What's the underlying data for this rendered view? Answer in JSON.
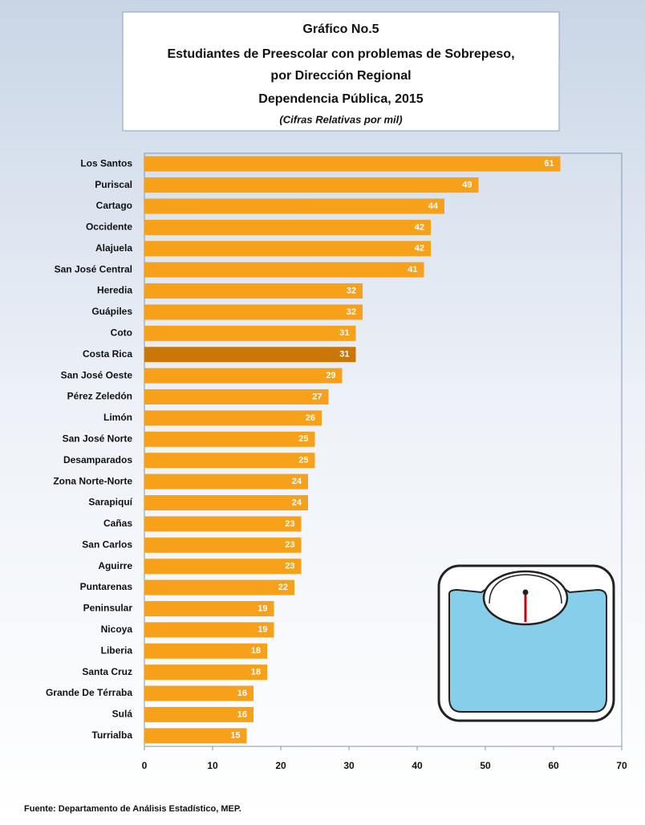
{
  "chart_data": {
    "type": "bar",
    "orientation": "horizontal",
    "title": [
      "Gráfico No.5",
      "Estudiantes de Preescolar con problemas de Sobrepeso,",
      "por Dirección Regional",
      "Dependencia Pública, 2015"
    ],
    "subtitle": "(Cifras Relativas por mil)",
    "categories": [
      "Los Santos",
      "Puriscal",
      "Cartago",
      "Occidente",
      "Alajuela",
      "San José Central",
      "Heredia",
      "Guápiles",
      "Coto",
      "Costa Rica",
      "San José Oeste",
      "Pérez Zeledón",
      "Limón",
      "San José Norte",
      "Desamparados",
      "Zona Norte-Norte",
      "Sarapiquí",
      "Cañas",
      "San Carlos",
      "Aguirre",
      "Puntarenas",
      "Peninsular",
      "Nicoya",
      "Liberia",
      "Santa Cruz",
      "Grande De Térraba",
      "Sulá",
      "Turrialba"
    ],
    "values": [
      61,
      49,
      44,
      42,
      42,
      41,
      32,
      32,
      31,
      31,
      29,
      27,
      26,
      25,
      25,
      24,
      24,
      23,
      23,
      23,
      22,
      19,
      19,
      18,
      18,
      16,
      16,
      15
    ],
    "colors": [
      "#f7a01a",
      "#f7a01a",
      "#f7a01a",
      "#f7a01a",
      "#f7a01a",
      "#f7a01a",
      "#f7a01a",
      "#f7a01a",
      "#f7a01a",
      "#c97706",
      "#f7a01a",
      "#f7a01a",
      "#f7a01a",
      "#f7a01a",
      "#f7a01a",
      "#f7a01a",
      "#f7a01a",
      "#f7a01a",
      "#f7a01a",
      "#f7a01a",
      "#f7a01a",
      "#f7a01a",
      "#f7a01a",
      "#f7a01a",
      "#f7a01a",
      "#f7a01a",
      "#f7a01a",
      "#f7a01a"
    ],
    "xlim": [
      0,
      70
    ],
    "xticks": [
      0,
      10,
      20,
      30,
      40,
      50,
      60,
      70
    ],
    "grid": false,
    "source": "Fuente: Departamento de Análisis Estadístico, MEP."
  }
}
